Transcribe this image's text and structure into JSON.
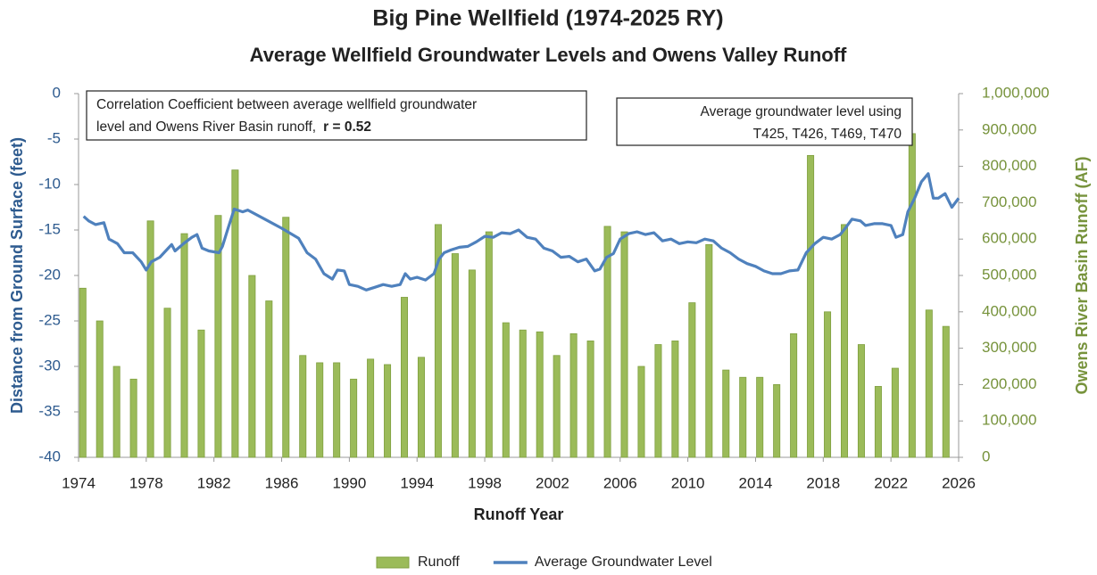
{
  "chart_data": {
    "type": "combo",
    "title": "Big Pine Wellfield (1974-2025 RY)",
    "subtitle": "Average Wellfield Groundwater Levels and Owens Valley Runoff",
    "x_label": "Runoff Year",
    "y_label": "Distance from Ground Surface (feet)",
    "y2_label": "Owens River Basin Runoff (AF)",
    "annotations": [
      {
        "lines": [
          "Correlation Coefficient between average wellfield groundwater",
          "level and Owens River Basin runoff,"
        ],
        "emphasis": "r = 0.52"
      },
      {
        "lines": [
          "Average groundwater level using",
          "T425, T426, T469, T470"
        ]
      }
    ],
    "xlim": [
      1974,
      2026
    ],
    "xticks": [
      1974,
      1978,
      1982,
      1986,
      1990,
      1994,
      1998,
      2002,
      2006,
      2010,
      2014,
      2018,
      2022,
      2026
    ],
    "ylim": [
      -40,
      0
    ],
    "yticks": [
      0,
      -5,
      -10,
      -15,
      -20,
      -25,
      -30,
      -35,
      -40
    ],
    "y2lim": [
      0,
      1000000
    ],
    "y2ticks": [
      {
        "value": 1000000,
        "label": "1,000,000"
      },
      {
        "value": 900000,
        "label": "900,000"
      },
      {
        "value": 800000,
        "label": "800,000"
      },
      {
        "value": 700000,
        "label": "700,000"
      },
      {
        "value": 600000,
        "label": "600,000"
      },
      {
        "value": 500000,
        "label": "500,000"
      },
      {
        "value": 400000,
        "label": "400,000"
      },
      {
        "value": 300000,
        "label": "300,000"
      },
      {
        "value": 200000,
        "label": "200,000"
      },
      {
        "value": 100000,
        "label": "100,000"
      },
      {
        "value": 0,
        "label": "0"
      }
    ],
    "legend": "bottom",
    "series": [
      {
        "name": "Runoff",
        "type": "bar",
        "axis": "y2",
        "color": "#9bbb59",
        "x": [
          1974,
          1975,
          1976,
          1977,
          1978,
          1979,
          1980,
          1981,
          1982,
          1983,
          1984,
          1985,
          1986,
          1987,
          1988,
          1989,
          1990,
          1991,
          1992,
          1993,
          1994,
          1995,
          1996,
          1997,
          1998,
          1999,
          2000,
          2001,
          2002,
          2003,
          2004,
          2005,
          2006,
          2007,
          2008,
          2009,
          2010,
          2011,
          2012,
          2013,
          2014,
          2015,
          2016,
          2017,
          2018,
          2019,
          2020,
          2021,
          2022,
          2023,
          2024,
          2025
        ],
        "values": [
          465000,
          375000,
          250000,
          215000,
          650000,
          410000,
          615000,
          350000,
          665000,
          790000,
          500000,
          430000,
          660000,
          280000,
          260000,
          260000,
          215000,
          270000,
          255000,
          440000,
          275000,
          640000,
          560000,
          515000,
          620000,
          370000,
          350000,
          345000,
          280000,
          340000,
          320000,
          635000,
          620000,
          250000,
          310000,
          320000,
          425000,
          585000,
          240000,
          220000,
          220000,
          200000,
          340000,
          830000,
          400000,
          640000,
          310000,
          195000,
          245000,
          890000,
          405000,
          360000
        ]
      },
      {
        "name": "Average Groundwater Level",
        "type": "line",
        "axis": "y",
        "color": "#4f81bd",
        "x": [
          1974.3,
          1974.6,
          1975.0,
          1975.5,
          1975.8,
          1976.3,
          1976.7,
          1977.2,
          1977.7,
          1978.0,
          1978.3,
          1978.8,
          1979.3,
          1979.5,
          1979.7,
          1980.2,
          1980.7,
          1981.0,
          1981.3,
          1981.7,
          1982.3,
          1982.5,
          1982.8,
          1983.2,
          1983.7,
          1984.0,
          1985.0,
          1986.0,
          1987.0,
          1987.5,
          1988.0,
          1988.5,
          1989.0,
          1989.3,
          1989.7,
          1990.0,
          1990.5,
          1991.0,
          1991.5,
          1992.0,
          1992.5,
          1993.0,
          1993.3,
          1993.6,
          1994.0,
          1994.5,
          1995.0,
          1995.3,
          1995.6,
          1996.0,
          1996.5,
          1997.0,
          1997.5,
          1998.0,
          1998.5,
          1999.0,
          1999.5,
          2000.0,
          2000.5,
          2001.0,
          2001.5,
          2002.0,
          2002.5,
          2003.0,
          2003.5,
          2004.0,
          2004.5,
          2004.8,
          2005.2,
          2005.6,
          2006.0,
          2006.5,
          2007.0,
          2007.5,
          2008.0,
          2008.5,
          2009.0,
          2009.5,
          2010.0,
          2010.5,
          2011.0,
          2011.5,
          2012.0,
          2012.5,
          2013.0,
          2013.5,
          2014.0,
          2014.5,
          2015.0,
          2015.5,
          2016.0,
          2016.5,
          2017.0,
          2017.5,
          2018.0,
          2018.5,
          2019.0,
          2019.3,
          2019.7,
          2020.2,
          2020.5,
          2021.0,
          2021.5,
          2022.0,
          2022.3,
          2022.7,
          2023.0,
          2023.4,
          2023.8,
          2024.2,
          2024.5,
          2024.8,
          2025.2,
          2025.6,
          2026.0
        ],
        "values": [
          -13.5,
          -14.0,
          -14.4,
          -14.2,
          -16.0,
          -16.5,
          -17.5,
          -17.5,
          -18.5,
          -19.4,
          -18.5,
          -18.0,
          -17.0,
          -16.6,
          -17.3,
          -16.5,
          -15.8,
          -15.5,
          -17.0,
          -17.3,
          -17.5,
          -16.8,
          -15.0,
          -12.7,
          -13.0,
          -12.8,
          -13.8,
          -14.8,
          -15.9,
          -17.5,
          -18.2,
          -19.8,
          -20.4,
          -19.4,
          -19.5,
          -21.0,
          -21.2,
          -21.6,
          -21.3,
          -21.0,
          -21.2,
          -21.0,
          -19.8,
          -20.4,
          -20.2,
          -20.5,
          -19.8,
          -18.2,
          -17.5,
          -17.2,
          -16.9,
          -16.8,
          -16.3,
          -15.7,
          -15.8,
          -15.3,
          -15.4,
          -15.0,
          -15.8,
          -16.0,
          -17.0,
          -17.3,
          -18.0,
          -17.9,
          -18.5,
          -18.2,
          -19.5,
          -19.3,
          -18.0,
          -17.6,
          -16.0,
          -15.4,
          -15.2,
          -15.5,
          -15.3,
          -16.2,
          -16.0,
          -16.5,
          -16.3,
          -16.4,
          -16.0,
          -16.2,
          -17.0,
          -17.5,
          -18.2,
          -18.7,
          -19.0,
          -19.5,
          -19.8,
          -19.8,
          -19.5,
          -19.4,
          -17.5,
          -16.5,
          -15.8,
          -16.0,
          -15.5,
          -14.8,
          -13.8,
          -14.0,
          -14.5,
          -14.3,
          -14.3,
          -14.5,
          -15.8,
          -15.5,
          -13.0,
          -11.5,
          -9.7,
          -8.8,
          -11.5,
          -11.5,
          -11.0,
          -12.5,
          -11.5
        ]
      }
    ]
  }
}
